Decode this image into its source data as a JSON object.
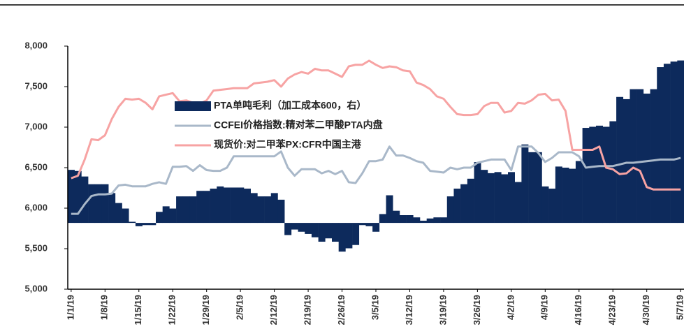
{
  "chart_data": {
    "type": "bar_line",
    "categories": [
      "1/1/19",
      null,
      null,
      null,
      null,
      "1/8/19",
      null,
      null,
      null,
      null,
      "1/15/19",
      null,
      null,
      null,
      null,
      "1/22/19",
      null,
      null,
      null,
      null,
      "1/29/19",
      null,
      null,
      null,
      null,
      "2/5/19",
      null,
      null,
      null,
      null,
      "2/12/19",
      null,
      null,
      null,
      null,
      "2/19/19",
      null,
      null,
      null,
      null,
      "2/26/19",
      null,
      null,
      null,
      null,
      "3/5/19",
      null,
      null,
      null,
      null,
      "3/12/19",
      null,
      null,
      null,
      null,
      "3/19/19",
      null,
      null,
      null,
      null,
      "3/26/19",
      null,
      null,
      null,
      null,
      "4/2/19",
      null,
      null,
      null,
      null,
      "4/9/19",
      null,
      null,
      null,
      null,
      "4/16/19",
      null,
      null,
      null,
      null,
      "4/23/19",
      null,
      null,
      null,
      null,
      "4/30/19",
      null,
      null,
      null,
      null,
      "5/7/19"
    ],
    "series": [
      {
        "name": "PTA单吨毛利（加工成本600，右）",
        "color": "#0d2a5c",
        "kind": "bar",
        "axis": "y2",
        "values": [
          480,
          470,
          420,
          350,
          350,
          350,
          270,
          180,
          130,
          10,
          -30,
          -20,
          -20,
          100,
          150,
          130,
          240,
          240,
          240,
          290,
          290,
          310,
          330,
          320,
          320,
          320,
          310,
          270,
          240,
          240,
          270,
          210,
          -110,
          -60,
          -80,
          -100,
          -130,
          -170,
          -140,
          -170,
          -260,
          -230,
          -200,
          -20,
          -30,
          -80,
          80,
          250,
          110,
          70,
          70,
          50,
          20,
          40,
          50,
          50,
          240,
          310,
          350,
          400,
          550,
          480,
          450,
          460,
          440,
          460,
          370,
          710,
          640,
          640,
          330,
          310,
          510,
          500,
          490,
          560,
          860,
          870,
          880,
          870,
          920,
          1140,
          1120,
          1210,
          1210,
          1170,
          1210,
          1410,
          1440,
          1460,
          1470
        ]
      },
      {
        "name": "CCFEI价格指数:精对苯二甲酸PTA内盘",
        "color": "#a9b8c9",
        "kind": "line",
        "values": [
          5930,
          5930,
          6050,
          6150,
          6170,
          6170,
          6180,
          6280,
          6290,
          6270,
          6270,
          6270,
          6300,
          6320,
          6300,
          6510,
          6510,
          6520,
          6460,
          6530,
          6470,
          6460,
          6460,
          6500,
          6640,
          6640,
          6640,
          6640,
          6640,
          6640,
          6640,
          6700,
          6500,
          6400,
          6480,
          6480,
          6480,
          6430,
          6460,
          6420,
          6460,
          6320,
          6310,
          6430,
          6580,
          6580,
          6600,
          6760,
          6650,
          6650,
          6620,
          6580,
          6560,
          6460,
          6450,
          6440,
          6500,
          6480,
          6500,
          6500,
          6560,
          6580,
          6600,
          6600,
          6600,
          6470,
          6760,
          6760,
          6760,
          6680,
          6570,
          6620,
          6690,
          6690,
          6690,
          6640,
          6500,
          6510,
          6520,
          6520,
          6520,
          6540,
          6560,
          6560,
          6570,
          6580,
          6590,
          6600,
          6600,
          6600,
          6620
        ]
      },
      {
        "name": "现货价:对二甲苯PX:CFR中国主港",
        "color": "#f7a3a3",
        "kind": "line",
        "values": [
          6370,
          6400,
          6600,
          6850,
          6840,
          6900,
          7100,
          7250,
          7350,
          7340,
          7350,
          7300,
          7220,
          7380,
          7400,
          7420,
          7320,
          7330,
          7300,
          7290,
          7330,
          7450,
          7460,
          7470,
          7480,
          7480,
          7480,
          7540,
          7550,
          7560,
          7580,
          7500,
          7600,
          7650,
          7680,
          7660,
          7720,
          7700,
          7700,
          7660,
          7620,
          7750,
          7770,
          7770,
          7820,
          7770,
          7730,
          7750,
          7740,
          7700,
          7690,
          7550,
          7520,
          7470,
          7380,
          7350,
          7250,
          7160,
          7150,
          7150,
          7160,
          7260,
          7300,
          7300,
          7180,
          7200,
          7300,
          7290,
          7330,
          7400,
          7410,
          7330,
          7340,
          7200,
          6720,
          6720,
          6720,
          6720,
          6760,
          6500,
          6480,
          6420,
          6430,
          6500,
          6460,
          6260,
          6230,
          6230,
          6230,
          6230,
          6230
        ]
      }
    ],
    "ylim": [
      5000,
      8000
    ],
    "yticks": [
      {
        "value": 5000,
        "label": "5,000"
      },
      {
        "value": 5500,
        "label": "5,500"
      },
      {
        "value": 6000,
        "label": "6,000"
      },
      {
        "value": 6500,
        "label": "6,500"
      },
      {
        "value": 7000,
        "label": "7,000"
      },
      {
        "value": 7500,
        "label": "7,500"
      },
      {
        "value": 8000,
        "label": "8,000"
      }
    ],
    "y2lim": [
      -600,
      1600
    ]
  }
}
